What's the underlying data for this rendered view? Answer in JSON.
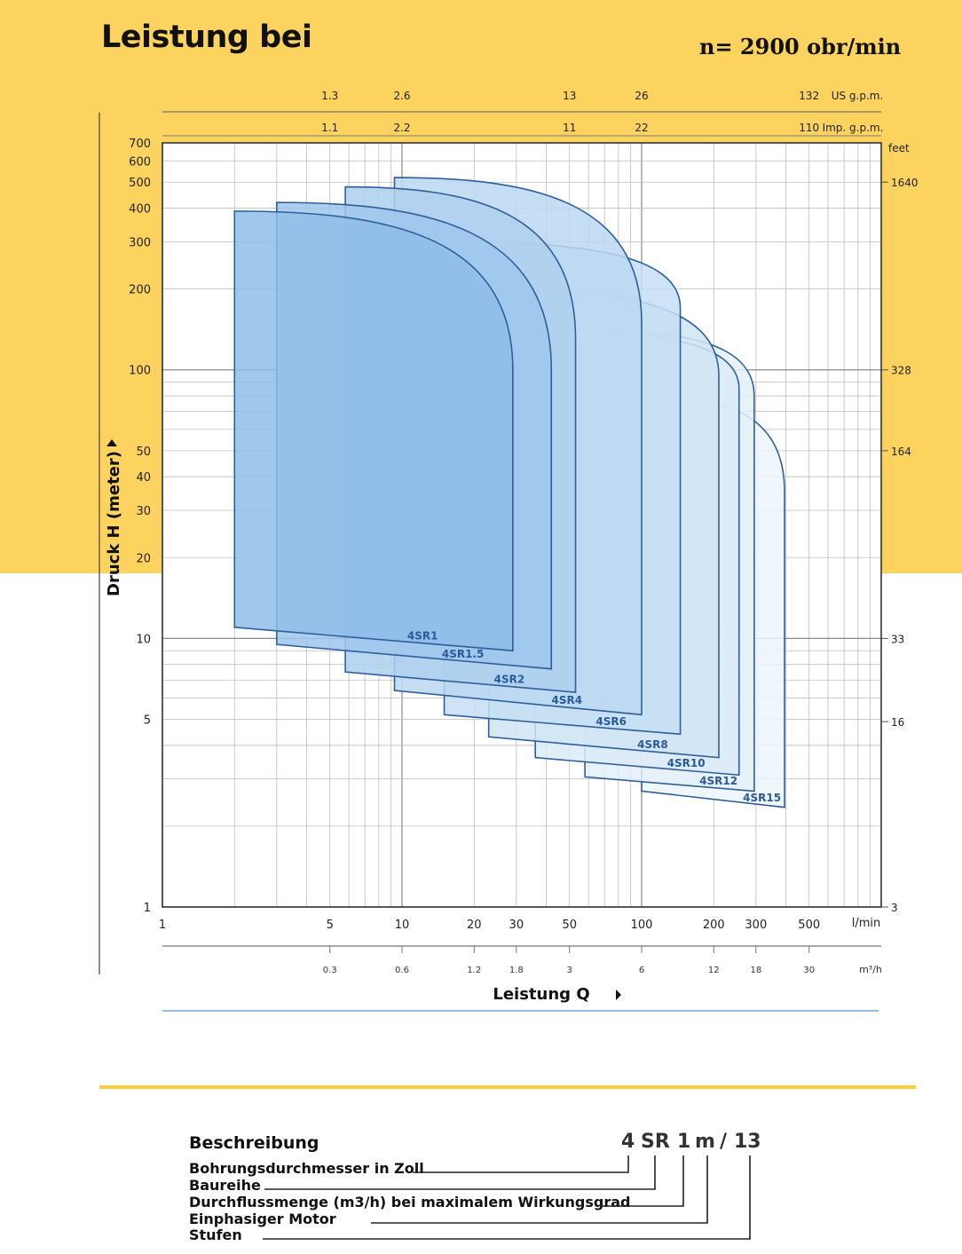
{
  "header": {
    "title": "Leistung bei",
    "speed": "n= 2900 obr/min"
  },
  "chart_data": {
    "type": "area",
    "x_scale": "log",
    "y_scale": "log",
    "xlim": [
      1,
      1000
    ],
    "ylim": [
      1,
      700
    ],
    "xlabel": "Leistung Q",
    "ylabel": "Druck H (meter)",
    "x_unit": "l/min",
    "x2_unit": "m³/h",
    "top_axis_us_unit": "US g.p.m.",
    "top_axis_imp_unit": "Imp. g.p.m.",
    "right_axis_unit": "feet",
    "x_ticks": [
      {
        "v": 1,
        "label": "1"
      },
      {
        "v": 5,
        "label": "5"
      },
      {
        "v": 10,
        "label": "10"
      },
      {
        "v": 20,
        "label": "20"
      },
      {
        "v": 30,
        "label": "30"
      },
      {
        "v": 50,
        "label": "50"
      },
      {
        "v": 100,
        "label": "100"
      },
      {
        "v": 200,
        "label": "200"
      },
      {
        "v": 300,
        "label": "300"
      },
      {
        "v": 500,
        "label": "500"
      }
    ],
    "m3h_ticks": [
      {
        "v": 5,
        "label": "0.3"
      },
      {
        "v": 10,
        "label": "0.6"
      },
      {
        "v": 20,
        "label": "1.2"
      },
      {
        "v": 30,
        "label": "1.8"
      },
      {
        "v": 50,
        "label": "3"
      },
      {
        "v": 100,
        "label": "6"
      },
      {
        "v": 200,
        "label": "12"
      },
      {
        "v": 300,
        "label": "18"
      },
      {
        "v": 500,
        "label": "30"
      }
    ],
    "us_gpm_ticks": [
      {
        "v": 5,
        "label": "1.3"
      },
      {
        "v": 10,
        "label": "2.6"
      },
      {
        "v": 50,
        "label": "13"
      },
      {
        "v": 100,
        "label": "26"
      },
      {
        "v": 500,
        "label": "132"
      }
    ],
    "imp_gpm_ticks": [
      {
        "v": 5,
        "label": "1.1"
      },
      {
        "v": 10,
        "label": "2.2"
      },
      {
        "v": 50,
        "label": "11"
      },
      {
        "v": 100,
        "label": "22"
      },
      {
        "v": 500,
        "label": "110"
      }
    ],
    "y_ticks": [
      {
        "v": 1,
        "label": "1"
      },
      {
        "v": 5,
        "label": "5"
      },
      {
        "v": 10,
        "label": "10"
      },
      {
        "v": 20,
        "label": "20"
      },
      {
        "v": 30,
        "label": "30"
      },
      {
        "v": 40,
        "label": "40"
      },
      {
        "v": 50,
        "label": "50"
      },
      {
        "v": 100,
        "label": "100"
      },
      {
        "v": 200,
        "label": "200"
      },
      {
        "v": 300,
        "label": "300"
      },
      {
        "v": 400,
        "label": "400"
      },
      {
        "v": 500,
        "label": "500"
      },
      {
        "v": 600,
        "label": "600"
      },
      {
        "v": 700,
        "label": "700"
      }
    ],
    "feet_ticks": [
      {
        "v": 500,
        "label": "1640"
      },
      {
        "v": 100,
        "label": "328"
      },
      {
        "v": 50,
        "label": "164"
      },
      {
        "v": 10,
        "label": "33"
      },
      {
        "v": 4.9,
        "label": "16"
      },
      {
        "v": 1,
        "label": "3"
      }
    ],
    "series": [
      {
        "name": "4SR1",
        "q_min": 2,
        "q_max": 29,
        "h_top": 390,
        "h_low_left": 11,
        "h_low_right": 9,
        "bend_h": 100,
        "color": "#8fbde9"
      },
      {
        "name": "4SR1.5",
        "q_min": 3,
        "q_max": 42,
        "h_top": 420,
        "h_low_left": 9.5,
        "h_low_right": 7.7,
        "bend_h": 100,
        "color": "#9fc7ec"
      },
      {
        "name": "4SR2",
        "q_min": 5.8,
        "q_max": 53,
        "h_top": 480,
        "h_low_left": 7.5,
        "h_low_right": 6.3,
        "bend_h": 130,
        "color": "#aed0ef"
      },
      {
        "name": "4SR4",
        "q_min": 9.3,
        "q_max": 100,
        "h_top": 520,
        "h_low_left": 6.4,
        "h_low_right": 5.2,
        "bend_h": 150,
        "color": "#bbd8f1"
      },
      {
        "name": "4SR6",
        "q_min": 15,
        "q_max": 145,
        "h_top": 300,
        "h_low_left": 5.2,
        "h_low_right": 4.4,
        "bend_h": 170,
        "color": "#c6def3"
      },
      {
        "name": "4SR8",
        "q_min": 23,
        "q_max": 210,
        "h_top": 200,
        "h_low_left": 4.3,
        "h_low_right": 3.6,
        "bend_h": 95,
        "color": "#d1e5f5"
      },
      {
        "name": "4SR10",
        "q_min": 36,
        "q_max": 255,
        "h_top": 140,
        "h_low_left": 3.6,
        "h_low_right": 3.1,
        "bend_h": 85,
        "color": "#dbebf7"
      },
      {
        "name": "4SR12",
        "q_min": 58,
        "q_max": 295,
        "h_top": 140,
        "h_low_left": 3.05,
        "h_low_right": 2.7,
        "bend_h": 80,
        "color": "#e4f0f9"
      },
      {
        "name": "4SR15",
        "q_min": 100,
        "q_max": 395,
        "h_top": 80,
        "h_low_left": 2.7,
        "h_low_right": 2.35,
        "bend_h": 35,
        "color": "#ecf4fb"
      }
    ]
  },
  "description": {
    "title": "Beschreibung",
    "code_parts": [
      "4",
      "SR",
      "1",
      "m",
      "/",
      "13"
    ],
    "items": [
      "Bohrungsdurchmesser in Zoll",
      "Baureihe",
      "Durchflussmenge (m3/h) bei maximalem Wirkungsgrad",
      "Einphasiger Motor",
      "Stufen"
    ]
  }
}
